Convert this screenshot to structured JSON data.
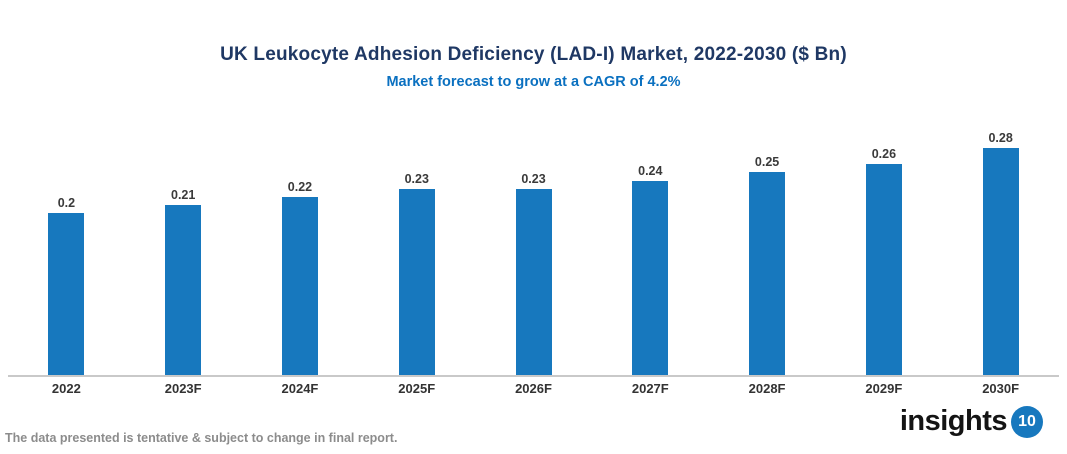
{
  "chart": {
    "title": "UK Leukocyte Adhesion Deficiency (LAD-I) Market, 2022-2030 ($ Bn)",
    "subtitle": "Market forecast to grow at a CAGR of 4.2%"
  },
  "chart_data": {
    "type": "bar",
    "categories": [
      "2022",
      "2023F",
      "2024F",
      "2025F",
      "2026F",
      "2027F",
      "2028F",
      "2029F",
      "2030F"
    ],
    "values": [
      0.2,
      0.21,
      0.22,
      0.23,
      0.23,
      0.24,
      0.25,
      0.26,
      0.28
    ],
    "data_labels": [
      "0.2",
      "0.21",
      "0.22",
      "0.23",
      "0.23",
      "0.24",
      "0.25",
      "0.26",
      "0.28"
    ],
    "title": "UK Leukocyte Adhesion Deficiency (LAD-I) Market, 2022-2030 ($ Bn)",
    "subtitle": "Market forecast to grow at a CAGR of 4.2%",
    "xlabel": "",
    "ylabel": "",
    "ylim": [
      0,
      0.3
    ],
    "grid": false,
    "legend": false,
    "bar_color": "#1778be"
  },
  "footer": {
    "disclaimer": "The data presented is tentative & subject to change in final report."
  },
  "logo": {
    "text": "insights",
    "badge": "10"
  },
  "colors": {
    "title": "#1f3864",
    "subtitle": "#0a70c0",
    "bar": "#1778be",
    "value_label": "#3a3a3a",
    "axis_line": "#c9c9c9",
    "footer": "#8c8c8c",
    "logo_badge": "#1778be"
  }
}
